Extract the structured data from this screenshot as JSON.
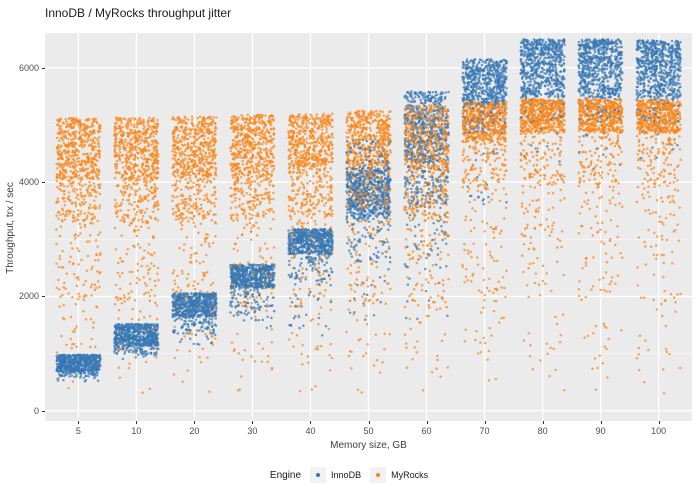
{
  "title": "InnoDB / MyRocks throughput jitter",
  "chart_data": {
    "type": "scatter",
    "title": "InnoDB / MyRocks throughput jitter",
    "xlabel": "Memory size, GB",
    "ylabel": "Throughput, trx / sec",
    "x_categories": [
      5,
      10,
      20,
      30,
      40,
      50,
      60,
      70,
      80,
      90,
      100
    ],
    "yticks": [
      0,
      2000,
      4000,
      6000
    ],
    "minor_yticks": [
      1000,
      3000,
      5000
    ],
    "ylim": [
      -180,
      6610
    ],
    "grid": true,
    "panel_bg": "#EBEBEB",
    "grid_color": "#FFFFFF",
    "axis_text_color": "#4d4d4d",
    "legend": {
      "title": "Engine",
      "position": "bottom",
      "entries": [
        {
          "label": "InnoDB",
          "color": "#3777B4"
        },
        {
          "label": "MyRocks",
          "color": "#F8861B"
        }
      ]
    },
    "jitter": {
      "seed": 20177,
      "x_half_width": 0.38,
      "point_radius": 1.25,
      "point_alpha": 0.72
    },
    "series": [
      {
        "name": "InnoDB",
        "color": "#3777B4",
        "clusters": [
          {
            "x": 5,
            "bands": [
              [
                690,
                980,
                520
              ],
              [
                600,
                690,
                60
              ],
              [
                500,
                600,
                10
              ]
            ]
          },
          {
            "x": 10,
            "bands": [
              [
                1130,
                1520,
                560
              ],
              [
                990,
                1130,
                60
              ],
              [
                900,
                990,
                8
              ]
            ]
          },
          {
            "x": 20,
            "bands": [
              [
                1640,
                2060,
                560
              ],
              [
                1350,
                1640,
                80
              ],
              [
                1150,
                1350,
                12
              ]
            ]
          },
          {
            "x": 30,
            "bands": [
              [
                2150,
                2560,
                560
              ],
              [
                1700,
                2150,
                80
              ],
              [
                1450,
                1700,
                12
              ]
            ]
          },
          {
            "x": 40,
            "bands": [
              [
                2740,
                3180,
                560
              ],
              [
                2250,
                2740,
                80
              ],
              [
                1300,
                2250,
                25
              ]
            ]
          },
          {
            "x": 50,
            "bands": [
              [
                3350,
                4250,
                600
              ],
              [
                4250,
                4750,
                70
              ],
              [
                2600,
                3350,
                70
              ],
              [
                1500,
                2600,
                15
              ]
            ]
          },
          {
            "x": 60,
            "bands": [
              [
                4350,
                5600,
                480
              ],
              [
                3600,
                4350,
                140
              ],
              [
                2500,
                3600,
                50
              ],
              [
                1500,
                2500,
                10
              ]
            ]
          },
          {
            "x": 70,
            "bands": [
              [
                5350,
                6150,
                540
              ],
              [
                4850,
                5350,
                90
              ],
              [
                3600,
                4850,
                20
              ]
            ]
          },
          {
            "x": 80,
            "bands": [
              [
                6050,
                6500,
                330
              ],
              [
                5480,
                6050,
                300
              ],
              [
                5050,
                5480,
                45
              ],
              [
                4200,
                5050,
                10
              ]
            ]
          },
          {
            "x": 90,
            "bands": [
              [
                6050,
                6500,
                330
              ],
              [
                5480,
                6050,
                300
              ],
              [
                5050,
                5480,
                45
              ],
              [
                4200,
                5050,
                10
              ]
            ]
          },
          {
            "x": 100,
            "bands": [
              [
                6030,
                6480,
                330
              ],
              [
                5460,
                6030,
                300
              ],
              [
                5030,
                5460,
                45
              ],
              [
                4200,
                5030,
                10
              ]
            ]
          }
        ]
      },
      {
        "name": "MyRocks",
        "color": "#F8861B",
        "clusters": [
          {
            "x": 5,
            "bands": [
              [
                4050,
                5120,
                480
              ],
              [
                3300,
                4050,
                150
              ],
              [
                1800,
                3300,
                90
              ],
              [
                700,
                1800,
                28
              ],
              [
                250,
                700,
                4
              ]
            ]
          },
          {
            "x": 10,
            "bands": [
              [
                4060,
                5130,
                480
              ],
              [
                3300,
                4060,
                150
              ],
              [
                1800,
                3300,
                90
              ],
              [
                700,
                1800,
                26
              ],
              [
                250,
                700,
                3
              ]
            ]
          },
          {
            "x": 20,
            "bands": [
              [
                4080,
                5150,
                480
              ],
              [
                3320,
                4080,
                150
              ],
              [
                1800,
                3320,
                85
              ],
              [
                700,
                1800,
                26
              ],
              [
                250,
                700,
                3
              ]
            ]
          },
          {
            "x": 30,
            "bands": [
              [
                4100,
                5180,
                480
              ],
              [
                3350,
                4100,
                150
              ],
              [
                1800,
                3350,
                85
              ],
              [
                700,
                1800,
                24
              ],
              [
                250,
                700,
                3
              ]
            ]
          },
          {
            "x": 40,
            "bands": [
              [
                4150,
                5200,
                480
              ],
              [
                3400,
                4150,
                150
              ],
              [
                1800,
                3400,
                85
              ],
              [
                700,
                1800,
                24
              ],
              [
                300,
                700,
                3
              ]
            ]
          },
          {
            "x": 50,
            "bands": [
              [
                4250,
                5250,
                460
              ],
              [
                3500,
                4250,
                160
              ],
              [
                1800,
                3500,
                85
              ],
              [
                700,
                1800,
                22
              ],
              [
                300,
                700,
                3
              ]
            ]
          },
          {
            "x": 60,
            "bands": [
              [
                4150,
                5350,
                480
              ],
              [
                3300,
                4150,
                140
              ],
              [
                1800,
                3300,
                80
              ],
              [
                700,
                1800,
                22
              ],
              [
                300,
                700,
                3
              ]
            ]
          },
          {
            "x": 70,
            "bands": [
              [
                4700,
                5400,
                500
              ],
              [
                3800,
                4700,
                120
              ],
              [
                1800,
                3800,
                75
              ],
              [
                700,
                1800,
                18
              ],
              [
                300,
                700,
                2
              ]
            ]
          },
          {
            "x": 80,
            "bands": [
              [
                4870,
                5450,
                500
              ],
              [
                3900,
                4870,
                110
              ],
              [
                1800,
                3900,
                70
              ],
              [
                700,
                1800,
                16
              ],
              [
                300,
                700,
                2
              ]
            ]
          },
          {
            "x": 90,
            "bands": [
              [
                4870,
                5450,
                500
              ],
              [
                3900,
                4870,
                110
              ],
              [
                1800,
                3900,
                70
              ],
              [
                700,
                1800,
                16
              ],
              [
                300,
                700,
                2
              ]
            ]
          },
          {
            "x": 100,
            "bands": [
              [
                4860,
                5440,
                500
              ],
              [
                3900,
                4860,
                110
              ],
              [
                1800,
                3900,
                70
              ],
              [
                700,
                1800,
                16
              ],
              [
                300,
                700,
                2
              ]
            ]
          }
        ]
      }
    ]
  }
}
